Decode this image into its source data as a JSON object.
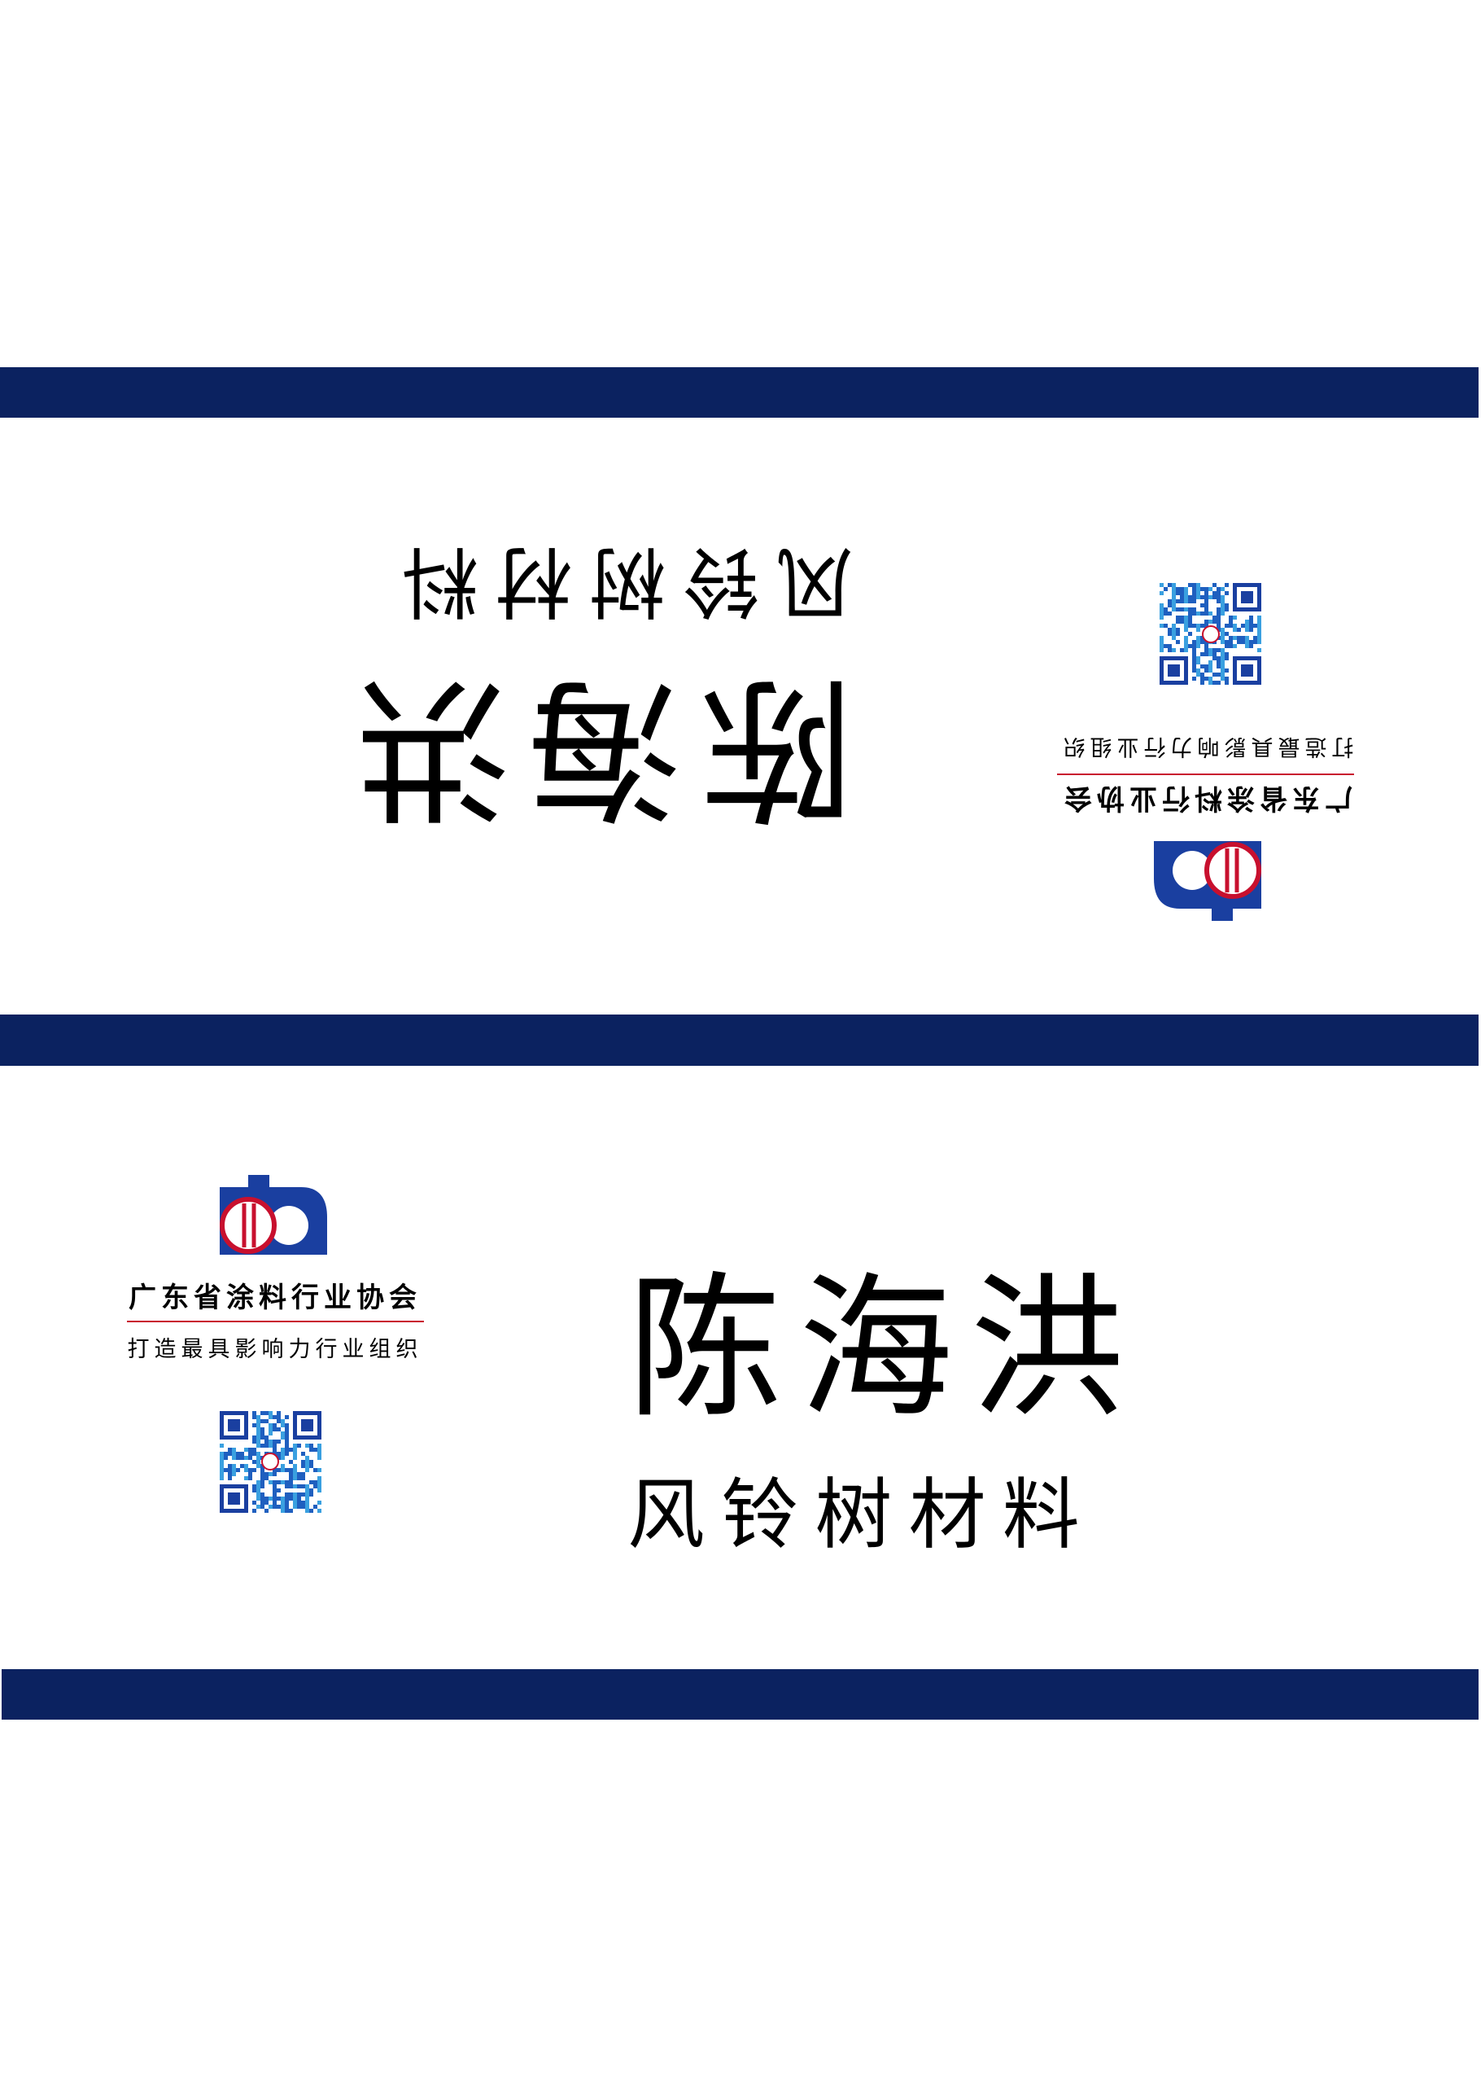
{
  "card": {
    "name": "陈 海 洪",
    "company": "风 铃 树 材 料",
    "org_name": "广东省涂料行业协会",
    "org_slogan": "打造最具影响力行业组织"
  }
}
